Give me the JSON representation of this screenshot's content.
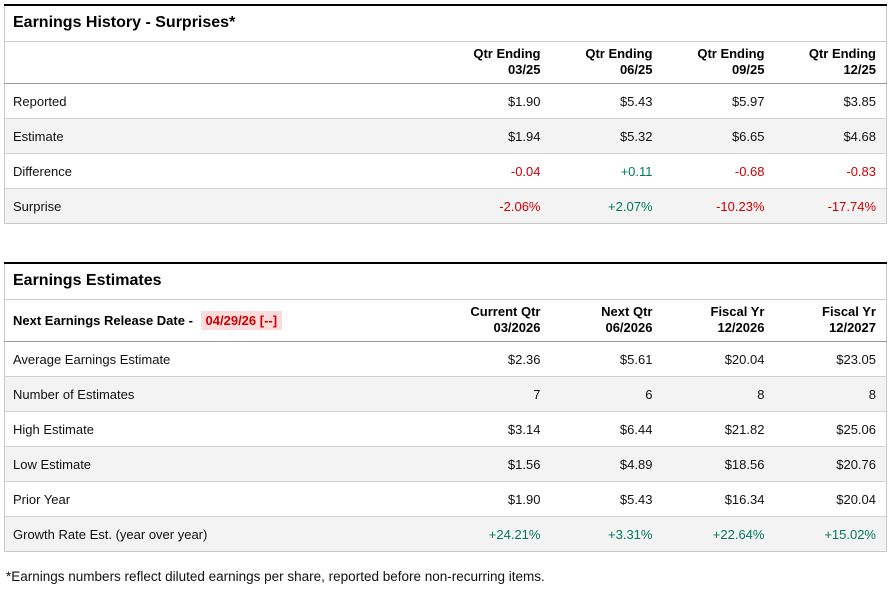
{
  "colors": {
    "negative": "#cc0000",
    "positive": "#00795c",
    "row_alt": "#f3f3f3",
    "date_highlight_bg": "#fbdcdc",
    "top_border": "#000000"
  },
  "earnings_history": {
    "title": "Earnings History - Surprises*",
    "columns": [
      {
        "label": "Qtr Ending",
        "sub": "03/25"
      },
      {
        "label": "Qtr Ending",
        "sub": "06/25"
      },
      {
        "label": "Qtr Ending",
        "sub": "09/25"
      },
      {
        "label": "Qtr Ending",
        "sub": "12/25"
      }
    ],
    "rows": [
      {
        "label": "Reported",
        "values": [
          "$1.90",
          "$5.43",
          "$5.97",
          "$3.85"
        ]
      },
      {
        "label": "Estimate",
        "values": [
          "$1.94",
          "$5.32",
          "$6.65",
          "$4.68"
        ]
      },
      {
        "label": "Difference",
        "values": [
          "-0.04",
          "+0.11",
          "-0.68",
          "-0.83"
        ]
      },
      {
        "label": "Surprise",
        "values": [
          "-2.06%",
          "+2.07%",
          "-10.23%",
          "-17.74%"
        ]
      }
    ]
  },
  "earnings_estimates": {
    "title": "Earnings Estimates",
    "release_date_label": "Next Earnings Release Date - ",
    "release_date": "04/29/26 [--]",
    "columns": [
      {
        "label": "Current Qtr",
        "sub": "03/2026"
      },
      {
        "label": "Next Qtr",
        "sub": "06/2026"
      },
      {
        "label": "Fiscal Yr",
        "sub": "12/2026"
      },
      {
        "label": "Fiscal Yr",
        "sub": "12/2027"
      }
    ],
    "rows": [
      {
        "label": "Average Earnings Estimate",
        "values": [
          "$2.36",
          "$5.61",
          "$20.04",
          "$23.05"
        ]
      },
      {
        "label": "Number of Estimates",
        "values": [
          "7",
          "6",
          "8",
          "8"
        ]
      },
      {
        "label": "High Estimate",
        "values": [
          "$3.14",
          "$6.44",
          "$21.82",
          "$25.06"
        ]
      },
      {
        "label": "Low Estimate",
        "values": [
          "$1.56",
          "$4.89",
          "$18.56",
          "$20.76"
        ]
      },
      {
        "label": "Prior Year",
        "values": [
          "$1.90",
          "$5.43",
          "$16.34",
          "$20.04"
        ]
      },
      {
        "label": "Growth Rate Est. (year over year)",
        "values": [
          "+24.21%",
          "+3.31%",
          "+22.64%",
          "+15.02%"
        ]
      }
    ]
  },
  "footnote": "*Earnings numbers reflect diluted earnings per share, reported before non-recurring items."
}
